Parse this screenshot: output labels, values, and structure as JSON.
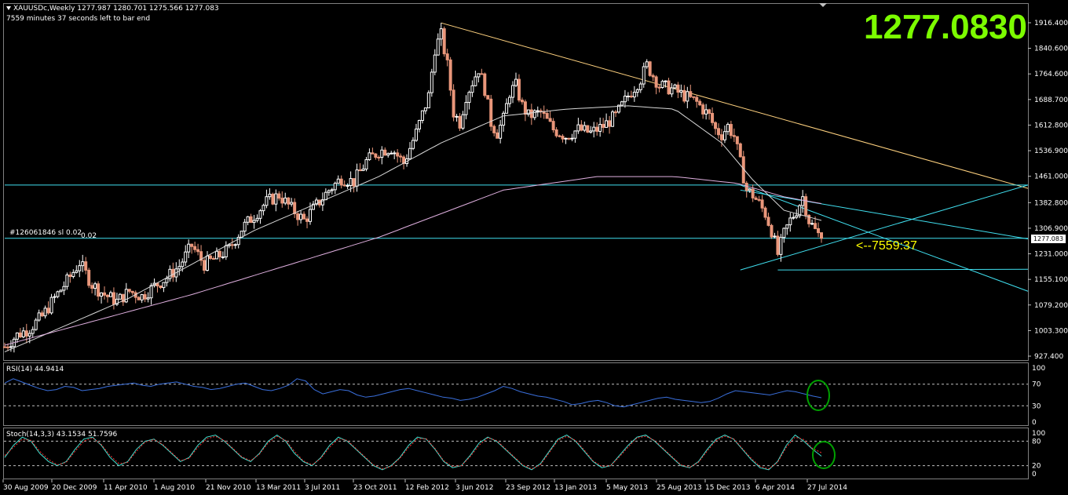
{
  "header": {
    "symbol_line": "XAUUSDc,Weekly  1277.987 1280.701 1275.566 1277.083",
    "timer_line": "7559 minutes 37 seconds left to bar end",
    "big_price": "1277.0830",
    "countdown_label": "<--7559:37",
    "order_label": "#126061846 sl",
    "order_value_1": "0.02",
    "order_value_2": "0.02",
    "current_price_box": "1277.083"
  },
  "colors": {
    "background": "#000000",
    "bull_candle": "#ffffff",
    "bear_candle": "#e9967a",
    "trendline_top": "#ffd27f",
    "cyan_line": "#40e0f0",
    "ma_fast": "#d8d8d8",
    "ma_slow": "#e0b0e0",
    "rsi_line": "#3a6fdc",
    "stoch_main": "#40e0d0",
    "stoch_signal": "#ff3030",
    "circle": "#00a000",
    "big_price": "#7cfc00",
    "countdown": "#ffff00"
  },
  "chart_data": [
    {
      "type": "candlestick",
      "panel": "price",
      "ylim": [
        927.4,
        1940
      ],
      "y_ticks": [
        1916.4,
        1840.6,
        1764.6,
        1688.7,
        1612.8,
        1536.9,
        1461.0,
        1382.8,
        1306.9,
        1231.0,
        1155.1,
        1079.2,
        1003.3,
        927.4
      ],
      "y_tick_labels": [
        "1916.400",
        "1840.600",
        "1764.600",
        "1688.700",
        "1612.800",
        "1536.900",
        "1461.000",
        "1382.800",
        "1306.900",
        "1231.000",
        "1155.100",
        "1079.200",
        "1003.300",
        "927.400"
      ],
      "x_tick_labels": [
        "30 Aug 2009",
        "20 Dec 2009",
        "11 Apr 2010",
        "1 Aug 2010",
        "21 Nov 2010",
        "13 Mar 2011",
        "3 Jul 2011",
        "23 Oct 2011",
        "12 Feb 2012",
        "3 Jun 2012",
        "23 Sep 2012",
        "13 Jan 2013",
        "5 May 2013",
        "25 Aug 2013",
        "15 Dec 2013",
        "6 Apr 2014",
        "27 Jul 2014"
      ],
      "week_range": [
        0,
        262
      ],
      "close_path": [
        [
          0,
          955
        ],
        [
          4,
          990
        ],
        [
          8,
          1010
        ],
        [
          12,
          1045
        ],
        [
          16,
          1100
        ],
        [
          20,
          1150
        ],
        [
          24,
          1205
        ],
        [
          28,
          1140
        ],
        [
          32,
          1110
        ],
        [
          36,
          1090
        ],
        [
          40,
          1120
        ],
        [
          44,
          1105
        ],
        [
          48,
          1135
        ],
        [
          52,
          1160
        ],
        [
          56,
          1195
        ],
        [
          60,
          1255
        ],
        [
          64,
          1200
        ],
        [
          68,
          1220
        ],
        [
          72,
          1245
        ],
        [
          76,
          1305
        ],
        [
          80,
          1345
        ],
        [
          84,
          1385
        ],
        [
          88,
          1405
        ],
        [
          92,
          1365
        ],
        [
          96,
          1330
        ],
        [
          100,
          1375
        ],
        [
          104,
          1420
        ],
        [
          108,
          1455
        ],
        [
          112,
          1445
        ],
        [
          116,
          1505
        ],
        [
          120,
          1535
        ],
        [
          124,
          1545
        ],
        [
          128,
          1500
        ],
        [
          132,
          1590
        ],
        [
          136,
          1700
        ],
        [
          138,
          1840
        ],
        [
          140,
          1880
        ],
        [
          142,
          1790
        ],
        [
          144,
          1650
        ],
        [
          146,
          1620
        ],
        [
          148,
          1700
        ],
        [
          150,
          1740
        ],
        [
          152,
          1780
        ],
        [
          154,
          1720
        ],
        [
          156,
          1620
        ],
        [
          158,
          1590
        ],
        [
          160,
          1630
        ],
        [
          162,
          1710
        ],
        [
          164,
          1730
        ],
        [
          166,
          1670
        ],
        [
          168,
          1640
        ],
        [
          172,
          1650
        ],
        [
          176,
          1600
        ],
        [
          180,
          1580
        ],
        [
          184,
          1600
        ],
        [
          188,
          1590
        ],
        [
          192,
          1610
        ],
        [
          196,
          1640
        ],
        [
          200,
          1700
        ],
        [
          204,
          1750
        ],
        [
          206,
          1790
        ],
        [
          208,
          1760
        ],
        [
          210,
          1730
        ],
        [
          214,
          1720
        ],
        [
          218,
          1700
        ],
        [
          222,
          1680
        ],
        [
          224,
          1660
        ],
        [
          226,
          1640
        ],
        [
          228,
          1600
        ],
        [
          230,
          1585
        ],
        [
          232,
          1610
        ],
        [
          234,
          1580
        ],
        [
          236,
          1500
        ],
        [
          238,
          1420
        ],
        [
          240,
          1405
        ],
        [
          242,
          1380
        ],
        [
          244,
          1350
        ],
        [
          246,
          1300
        ],
        [
          248,
          1230
        ],
        [
          250,
          1290
        ],
        [
          252,
          1330
        ],
        [
          254,
          1360
        ],
        [
          256,
          1400
        ],
        [
          258,
          1330
        ],
        [
          260,
          1300
        ],
        [
          262,
          1277
        ]
      ],
      "ma_fast_path": [
        [
          0,
          940
        ],
        [
          40,
          1100
        ],
        [
          80,
          1300
        ],
        [
          120,
          1460
        ],
        [
          140,
          1560
        ],
        [
          160,
          1640
        ],
        [
          180,
          1660
        ],
        [
          200,
          1670
        ],
        [
          215,
          1660
        ],
        [
          230,
          1560
        ],
        [
          240,
          1450
        ],
        [
          250,
          1360
        ],
        [
          262,
          1330
        ]
      ],
      "ma_slow_path": [
        [
          0,
          960
        ],
        [
          60,
          1110
        ],
        [
          120,
          1280
        ],
        [
          160,
          1420
        ],
        [
          190,
          1460
        ],
        [
          215,
          1460
        ],
        [
          235,
          1440
        ],
        [
          250,
          1400
        ],
        [
          262,
          1380
        ]
      ]
    },
    {
      "type": "line",
      "panel": "rsi",
      "title": "RSI(14) 44.9414",
      "ylim": [
        0,
        100
      ],
      "y_ticks": [
        100,
        70,
        30,
        0
      ],
      "levels": [
        70,
        30
      ],
      "values": [
        72,
        80,
        74,
        68,
        62,
        58,
        60,
        66,
        64,
        58,
        60,
        62,
        66,
        68,
        70,
        72,
        68,
        66,
        70,
        72,
        74,
        70,
        66,
        64,
        60,
        62,
        66,
        70,
        72,
        66,
        60,
        58,
        62,
        68,
        80,
        76,
        60,
        52,
        56,
        60,
        58,
        50,
        46,
        48,
        52,
        56,
        60,
        62,
        58,
        54,
        50,
        46,
        44,
        40,
        42,
        46,
        52,
        58,
        66,
        62,
        56,
        52,
        48,
        46,
        42,
        38,
        32,
        34,
        38,
        40,
        36,
        30,
        28,
        32,
        36,
        40,
        44,
        46,
        42,
        40,
        38,
        36,
        38,
        44,
        52,
        58,
        56,
        54,
        52,
        50,
        54,
        58,
        56,
        52,
        48,
        44.9
      ]
    },
    {
      "type": "line",
      "panel": "stoch",
      "title": "Stoch(14,3,3) 43.1534 51.7596",
      "ylim": [
        0,
        100
      ],
      "y_ticks": [
        100,
        80,
        20,
        0
      ],
      "levels": [
        80,
        20
      ],
      "main": [
        40,
        70,
        90,
        80,
        50,
        30,
        20,
        30,
        60,
        85,
        90,
        70,
        40,
        20,
        30,
        60,
        80,
        85,
        70,
        50,
        30,
        40,
        70,
        90,
        95,
        80,
        60,
        40,
        30,
        50,
        80,
        95,
        80,
        50,
        30,
        20,
        40,
        70,
        90,
        80,
        60,
        40,
        20,
        10,
        20,
        40,
        70,
        90,
        85,
        60,
        30,
        15,
        20,
        45,
        75,
        90,
        80,
        60,
        40,
        20,
        10,
        25,
        55,
        85,
        95,
        80,
        55,
        30,
        15,
        20,
        45,
        70,
        90,
        95,
        80,
        60,
        40,
        20,
        15,
        30,
        60,
        85,
        95,
        85,
        60,
        35,
        15,
        10,
        30,
        70,
        95,
        80,
        60,
        43.2
      ],
      "signal": [
        45,
        65,
        85,
        82,
        55,
        35,
        22,
        28,
        55,
        80,
        88,
        72,
        45,
        25,
        28,
        55,
        78,
        84,
        72,
        52,
        32,
        38,
        65,
        86,
        92,
        82,
        62,
        42,
        32,
        48,
        76,
        92,
        82,
        55,
        32,
        22,
        38,
        65,
        86,
        82,
        62,
        42,
        22,
        12,
        18,
        38,
        65,
        86,
        86,
        62,
        32,
        18,
        20,
        42,
        70,
        88,
        82,
        62,
        42,
        22,
        12,
        22,
        52,
        82,
        92,
        82,
        58,
        32,
        18,
        20,
        42,
        66,
        88,
        92,
        82,
        62,
        42,
        22,
        16,
        28,
        56,
        82,
        92,
        86,
        62,
        38,
        18,
        12,
        28,
        65,
        90,
        84,
        62,
        51.8
      ]
    }
  ]
}
